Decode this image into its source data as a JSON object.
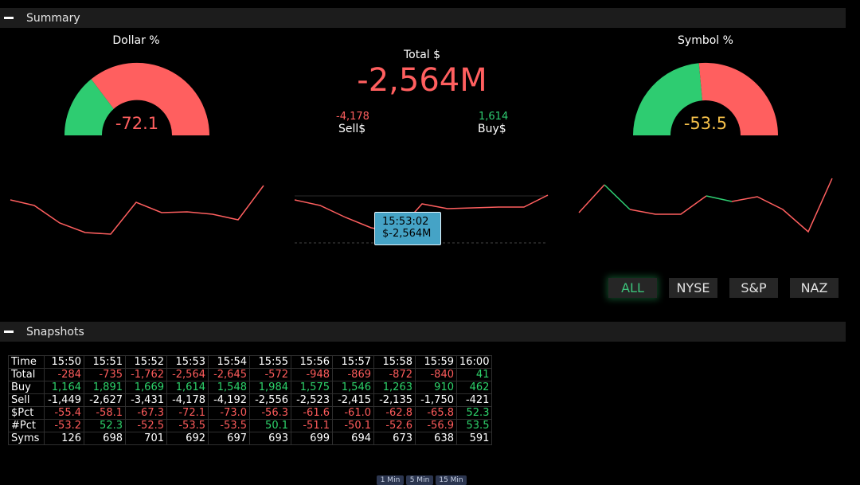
{
  "summary": {
    "header": "Summary",
    "dollar_gauge": {
      "title": "Dollar %",
      "value": "-72.1",
      "value_color": "#ff5f5f"
    },
    "symbol_gauge": {
      "title": "Symbol %",
      "value": "-53.5",
      "value_color": "#f5c04a"
    },
    "total": {
      "label": "Total $",
      "value": "-2,564M"
    },
    "sell": {
      "value": "-4,178",
      "label": "Sell$"
    },
    "buy": {
      "value": "1,614",
      "label": "Buy$"
    },
    "tooltip": {
      "time": "15:53:02",
      "value": "$-2,564M"
    },
    "filters": [
      "ALL",
      "NYSE",
      "S&P",
      "NAZ"
    ],
    "active_filter": "ALL"
  },
  "colors": {
    "negative": "#ff5f5f",
    "positive": "#2ecc71",
    "tooltip_bg": "#45a3c6"
  },
  "snapshots": {
    "header": "Snapshots",
    "row_labels": [
      "Time",
      "Total",
      "Buy",
      "Sell",
      "$Pct",
      "#Pct",
      "Syms"
    ],
    "times": [
      "15:50",
      "15:51",
      "15:52",
      "15:53",
      "15:54",
      "15:55",
      "15:56",
      "15:57",
      "15:58",
      "15:59",
      "16:00"
    ],
    "total": [
      "-284",
      "-735",
      "-1,762",
      "-2,564",
      "-2,645",
      "-572",
      "-948",
      "-869",
      "-872",
      "-840",
      "41"
    ],
    "buy": [
      "1,164",
      "1,891",
      "1,669",
      "1,614",
      "1,548",
      "1,984",
      "1,575",
      "1,546",
      "1,263",
      "910",
      "462"
    ],
    "sell": [
      "-1,449",
      "-2,627",
      "-3,431",
      "-4,178",
      "-4,192",
      "-2,556",
      "-2,523",
      "-2,415",
      "-2,135",
      "-1,750",
      "-421"
    ],
    "dollar_pct": [
      "-55.4",
      "-58.1",
      "-67.3",
      "-72.1",
      "-73.0",
      "-56.3",
      "-61.6",
      "-61.0",
      "-62.8",
      "-65.8",
      "52.3"
    ],
    "sym_pct": [
      "-53.2",
      "52.3",
      "-52.5",
      "-53.5",
      "-53.5",
      "50.1",
      "-51.1",
      "-50.1",
      "-52.6",
      "-56.9",
      "53.5"
    ],
    "syms": [
      "126",
      "698",
      "701",
      "692",
      "697",
      "693",
      "699",
      "694",
      "673",
      "638",
      "591"
    ]
  },
  "intervals": [
    "1 Min",
    "5 Min",
    "15 Min"
  ]
}
